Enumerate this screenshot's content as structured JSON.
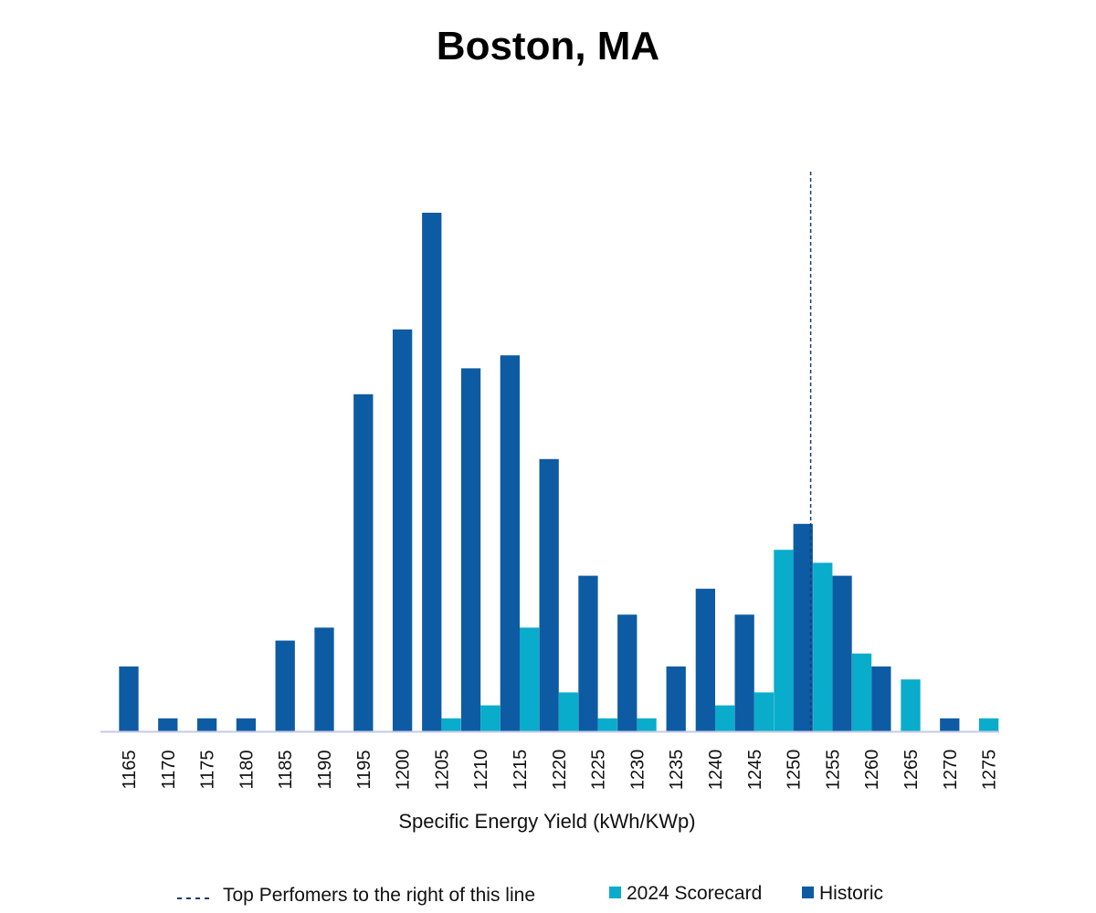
{
  "chart_data": {
    "type": "bar",
    "title": "Boston, MA",
    "xlabel": "Specific Energy Yield (kWh/KWp)",
    "ylabel": "",
    "grid": false,
    "legend_position": "bottom",
    "categories": [
      "1165",
      "1170",
      "1175",
      "1180",
      "1185",
      "1190",
      "1195",
      "1200",
      "1205",
      "1210",
      "1215",
      "1220",
      "1225",
      "1230",
      "1235",
      "1240",
      "1245",
      "1250",
      "1255",
      "1260",
      "1265",
      "1270",
      "1275"
    ],
    "series": [
      {
        "name": "2024 Scorecard",
        "color": "#09ACCB",
        "values": [
          0,
          0,
          0,
          0,
          0,
          0,
          0,
          0,
          1,
          2,
          8,
          3,
          1,
          1,
          0,
          2,
          3,
          14,
          13,
          6,
          4,
          0,
          1
        ]
      },
      {
        "name": "Historic",
        "color": "#0D5BA3",
        "values": [
          5,
          1,
          1,
          1,
          7,
          8,
          26,
          31,
          40,
          28,
          29,
          21,
          12,
          9,
          5,
          11,
          9,
          16,
          12,
          5,
          0,
          1,
          0
        ]
      }
    ],
    "reference_line": {
      "label": "Top Perfomers to the right of this line",
      "x": 1252.5,
      "style": "dashed",
      "color": "#1F3A6E"
    },
    "axis_color": "#C5CAE9"
  }
}
